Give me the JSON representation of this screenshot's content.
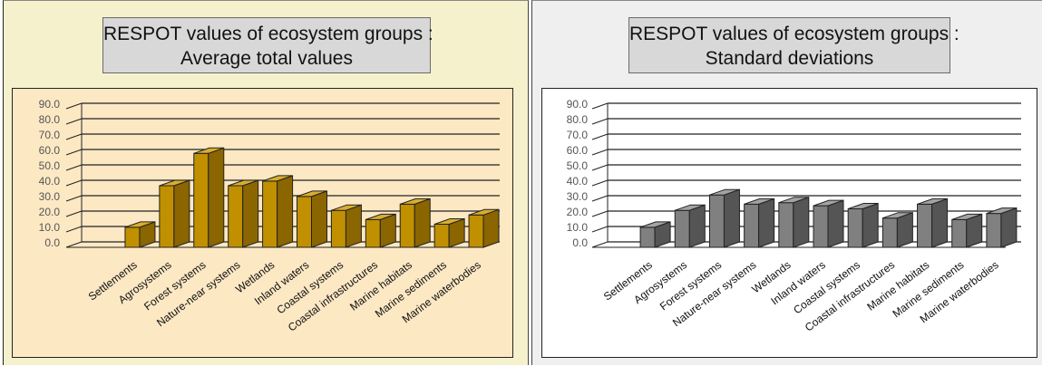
{
  "chart_data": [
    {
      "type": "bar",
      "title_lines": [
        "RESPOT values of ecosystem groups :",
        "Average total values"
      ],
      "categories": [
        "Settlements",
        "Agrosystems",
        "Forest systems",
        "Nature-near systems",
        "Wetlands",
        "Inland waters",
        "Coastal systems",
        "Coastal infrastructures",
        "Marine habitats",
        "Marine sediments",
        "Marine waterbodies"
      ],
      "values": [
        13,
        40,
        61,
        40,
        43,
        33,
        24,
        18,
        28,
        15,
        21
      ],
      "yticks": [
        "0.0",
        "10.0",
        "20.0",
        "30.0",
        "40.0",
        "50.0",
        "60.0",
        "70.0",
        "80.0",
        "90.0"
      ],
      "ylim": [
        0,
        90
      ],
      "grid": true,
      "style": "3d-bar",
      "colors": {
        "front": "#c09000",
        "side": "#8a6500",
        "top": "#d9ad2e",
        "tick_text": "#555555",
        "background": "#fde8c4",
        "panel": "#f6f1cd"
      }
    },
    {
      "type": "bar",
      "title_lines": [
        "RESPOT values of ecosystem groups :",
        "Standard deviations"
      ],
      "categories": [
        "Settlements",
        "Agrosystems",
        "Forest systems",
        "Nature-near systems",
        "Wetlands",
        "Inland waters",
        "Coastal systems",
        "Coastal infrastructures",
        "Marine habitats",
        "Marine sediments",
        "Marine waterbodies"
      ],
      "values": [
        13,
        24,
        34,
        28,
        29,
        27,
        25,
        19,
        28,
        18,
        22
      ],
      "yticks": [
        "0.0",
        "10.0",
        "20.0",
        "30.0",
        "40.0",
        "50.0",
        "60.0",
        "70.0",
        "80.0",
        "90.0"
      ],
      "ylim": [
        0,
        90
      ],
      "grid": true,
      "style": "3d-bar",
      "colors": {
        "front": "#808080",
        "side": "#555555",
        "top": "#a3a3a3",
        "tick_text": "#555555",
        "background": "#ffffff",
        "panel": "#efefef"
      }
    }
  ]
}
